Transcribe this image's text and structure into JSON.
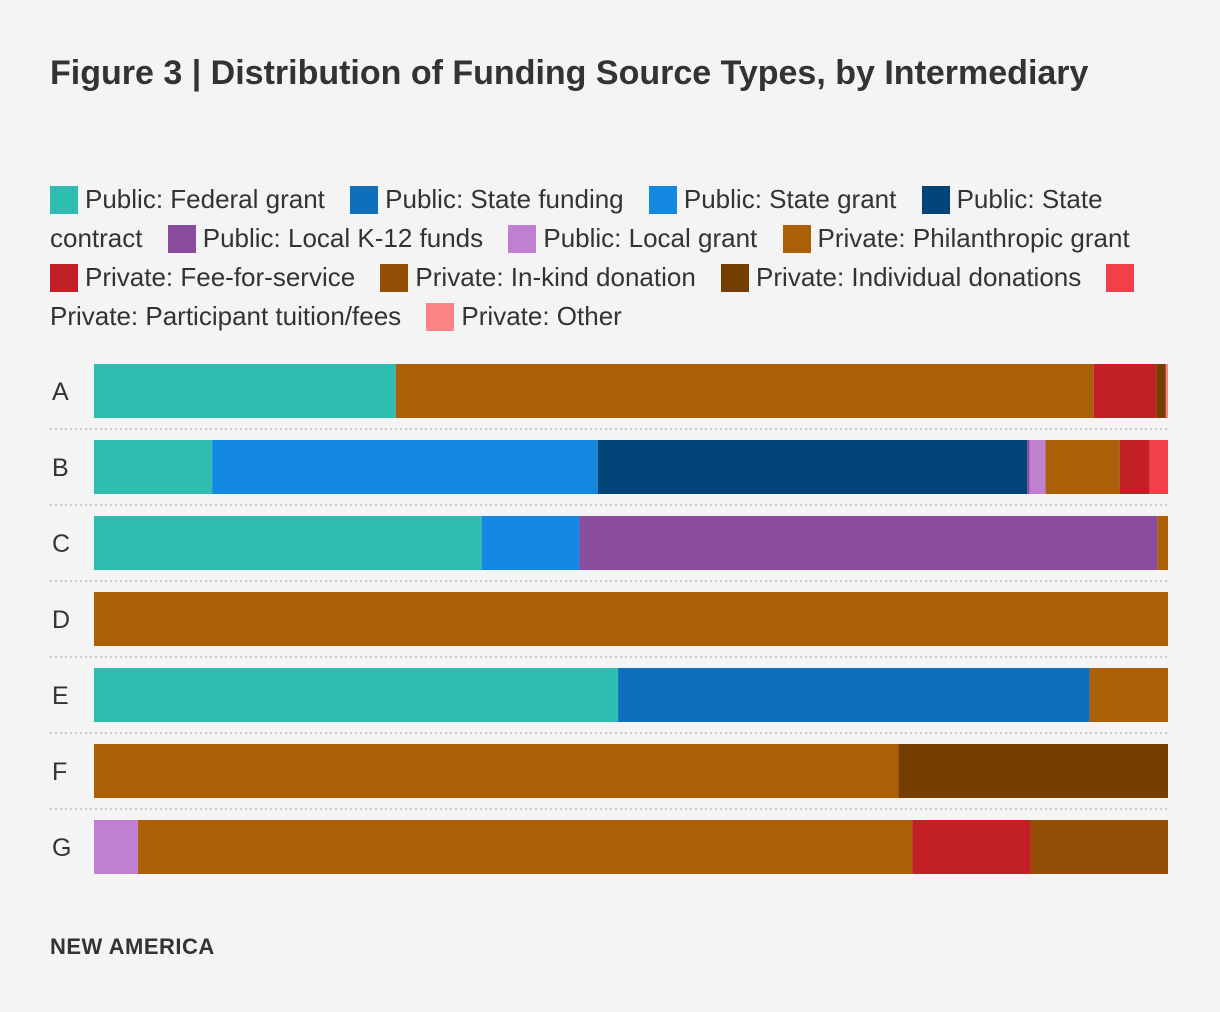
{
  "title": "Figure 3 | Distribution of Funding Source Types, by Intermediary",
  "brand": "NEW AMERICA",
  "chart_data": {
    "type": "bar",
    "orientation": "horizontal",
    "stacked": true,
    "normalized_to": 100,
    "title": "Figure 3 | Distribution of Funding Source Types, by Intermediary",
    "xlabel": "",
    "ylabel": "",
    "xlim": [
      0,
      100
    ],
    "grid": false,
    "legend_position": "top",
    "categories": [
      "A",
      "B",
      "C",
      "D",
      "E",
      "F",
      "G"
    ],
    "series": [
      {
        "name": "Public: Federal grant",
        "color": "#2fbdb2",
        "values": [
          28.1,
          11.0,
          36.1,
          0,
          48.8,
          0,
          0
        ]
      },
      {
        "name": "Public: State funding",
        "color": "#0f6fba",
        "values": [
          0,
          0,
          0,
          0,
          43.9,
          0,
          0
        ]
      },
      {
        "name": "Public: State grant",
        "color": "#1388e0",
        "values": [
          0,
          35.9,
          9.1,
          0,
          0,
          0,
          0
        ]
      },
      {
        "name": "Public: State contract",
        "color": "#034579",
        "values": [
          0,
          40.0,
          0,
          0,
          0,
          0,
          0
        ]
      },
      {
        "name": "Public: Local K-12 funds",
        "color": "#8a4c9d",
        "values": [
          0,
          0.2,
          53.8,
          0,
          0,
          0,
          0
        ]
      },
      {
        "name": "Public: Local grant",
        "color": "#c07fd0",
        "values": [
          0,
          1.5,
          0,
          0,
          0,
          0,
          4.1
        ]
      },
      {
        "name": "Private: Philanthropic grant",
        "color": "#ab5f06",
        "values": [
          65.0,
          6.9,
          1.0,
          100,
          7.3,
          74.9,
          72.1
        ]
      },
      {
        "name": "Private: Fee-for-service",
        "color": "#c21f26",
        "values": [
          5.8,
          2.8,
          0,
          0,
          0,
          0,
          11.0
        ]
      },
      {
        "name": "Private: In-kind donation",
        "color": "#934f05",
        "values": [
          0,
          0,
          0,
          0,
          0,
          0,
          12.8
        ]
      },
      {
        "name": "Private: Individual donations",
        "color": "#753f03",
        "values": [
          0.9,
          0,
          0,
          0,
          0,
          25.1,
          0
        ]
      },
      {
        "name": "Private: Participant tuition/fees",
        "color": "#f2404a",
        "values": [
          0,
          1.7,
          0,
          0,
          0,
          0,
          0
        ]
      },
      {
        "name": "Private: Other",
        "color": "#ff8488",
        "values": [
          0.2,
          0,
          0,
          0,
          0,
          0,
          0
        ]
      }
    ]
  }
}
